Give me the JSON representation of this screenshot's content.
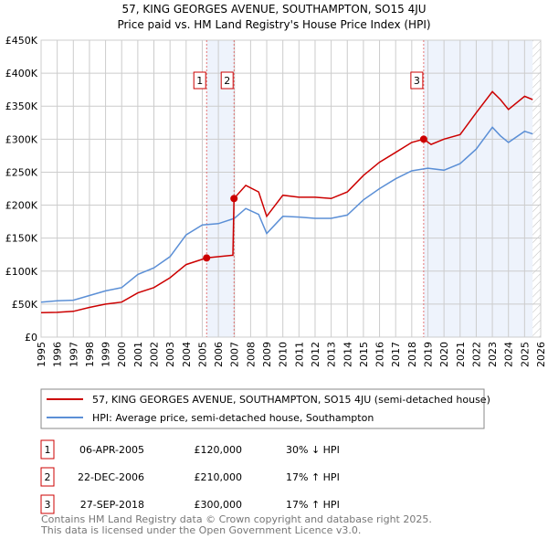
{
  "chart_data": {
    "type": "line",
    "title": "57, KING GEORGES AVENUE, SOUTHAMPTON, SO15 4JU",
    "subtitle": "Price paid vs. HM Land Registry's House Price Index (HPI)",
    "xlabel": "",
    "ylabel": "",
    "xlim": [
      1995,
      2026
    ],
    "ylim": [
      0,
      450000
    ],
    "grid": true,
    "x_ticks": [
      "1995",
      "1996",
      "1997",
      "1998",
      "1999",
      "2000",
      "2001",
      "2002",
      "2003",
      "2004",
      "2005",
      "2006",
      "2007",
      "2008",
      "2009",
      "2010",
      "2011",
      "2012",
      "2013",
      "2014",
      "2015",
      "2016",
      "2017",
      "2018",
      "2019",
      "2020",
      "2021",
      "2022",
      "2023",
      "2024",
      "2025",
      "2026"
    ],
    "y_ticks": [
      {
        "v": 0,
        "label": "£0"
      },
      {
        "v": 50000,
        "label": "£50K"
      },
      {
        "v": 100000,
        "label": "£100K"
      },
      {
        "v": 150000,
        "label": "£150K"
      },
      {
        "v": 200000,
        "label": "£200K"
      },
      {
        "v": 250000,
        "label": "£250K"
      },
      {
        "v": 300000,
        "label": "£300K"
      },
      {
        "v": 350000,
        "label": "£350K"
      },
      {
        "v": 400000,
        "label": "£400K"
      },
      {
        "v": 450000,
        "label": "£450K"
      }
    ],
    "series": [
      {
        "name": "57, KING GEORGES AVENUE, SOUTHAMPTON, SO15 4JU (semi-detached house)",
        "color": "#cc0000",
        "x": [
          1995,
          1996,
          1997,
          1998,
          1999,
          2000,
          2001,
          2002,
          2003,
          2004,
          2005.27,
          2006.9,
          2006.97,
          2007.7,
          2008.5,
          2009.0,
          2010,
          2011,
          2012,
          2013,
          2014,
          2015,
          2016,
          2017,
          2018,
          2018.74,
          2019.2,
          2020,
          2021,
          2022,
          2023,
          2023.5,
          2024,
          2025,
          2025.5
        ],
        "y": [
          37000,
          37500,
          39000,
          45000,
          50000,
          53000,
          67000,
          75000,
          90000,
          110000,
          120000,
          124000,
          210000,
          230000,
          220000,
          183000,
          215000,
          212000,
          212000,
          210000,
          220000,
          245000,
          265000,
          280000,
          295000,
          300000,
          292000,
          300000,
          307000,
          340000,
          372000,
          360000,
          345000,
          365000,
          360000
        ]
      },
      {
        "name": "HPI: Average price, semi-detached house, Southampton",
        "color": "#5b8fd6",
        "x": [
          1995,
          1996,
          1997,
          1998,
          1999,
          2000,
          2001,
          2002,
          2003,
          2004,
          2005,
          2006,
          2007,
          2007.7,
          2008.5,
          2009.0,
          2010,
          2011,
          2012,
          2013,
          2014,
          2015,
          2016,
          2017,
          2018,
          2019,
          2020,
          2021,
          2022,
          2023,
          2023.5,
          2024,
          2025,
          2025.5
        ],
        "y": [
          53000,
          55000,
          56000,
          63000,
          70000,
          75000,
          95000,
          105000,
          122000,
          155000,
          170000,
          172000,
          180000,
          195000,
          186000,
          157000,
          183000,
          182000,
          180000,
          180000,
          185000,
          208000,
          225000,
          240000,
          252000,
          256000,
          253000,
          263000,
          285000,
          318000,
          305000,
          295000,
          312000,
          308000
        ]
      }
    ],
    "sales": [
      {
        "id": "1",
        "x": 2005.27,
        "y": 120000,
        "date": "06-APR-2005",
        "price": "£120,000",
        "hpi": "30% ↓ HPI"
      },
      {
        "id": "2",
        "x": 2006.97,
        "y": 210000,
        "date": "22-DEC-2006",
        "price": "£210,000",
        "hpi": "17% ↑ HPI"
      },
      {
        "id": "3",
        "x": 2018.74,
        "y": 300000,
        "date": "27-SEP-2018",
        "price": "£300,000",
        "hpi": "17% ↑ HPI"
      }
    ],
    "shaded_ranges": [
      [
        2005.27,
        2006.97
      ],
      [
        2018.74,
        2025.5
      ]
    ],
    "hatched_from": 2025.5,
    "legend_position": "below"
  },
  "footer": {
    "line1": "Contains HM Land Registry data © Crown copyright and database right 2025.",
    "line2": "This data is licensed under the Open Government Licence v3.0."
  }
}
